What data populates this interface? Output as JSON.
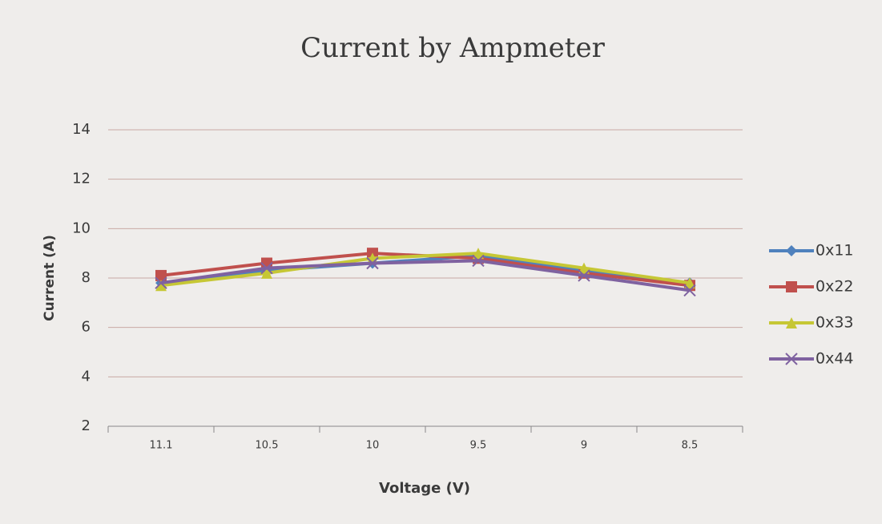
{
  "chart_data": {
    "type": "line",
    "title": "Current  by Ampmeter",
    "x_label": "Voltage (V)",
    "y_label": "Current (A)",
    "categories": [
      "11.1",
      "10.5",
      "10",
      "9.5",
      "9",
      "8.5"
    ],
    "series": [
      {
        "name": "0x11",
        "color": "#4f81bd",
        "marker": "diamond",
        "values": [
          7.8,
          8.3,
          8.6,
          8.9,
          8.3,
          7.8
        ]
      },
      {
        "name": "0x22",
        "color": "#c0504d",
        "marker": "square",
        "values": [
          8.1,
          8.6,
          9.0,
          8.8,
          8.2,
          7.7
        ]
      },
      {
        "name": "0x33",
        "color": "#c6c735",
        "marker": "triangle",
        "values": [
          7.7,
          8.2,
          8.8,
          9.0,
          8.4,
          7.8
        ]
      },
      {
        "name": "0x44",
        "color": "#7f62a0",
        "marker": "x",
        "values": [
          7.8,
          8.4,
          8.6,
          8.7,
          8.1,
          7.5
        ]
      }
    ],
    "ylim": [
      2,
      14
    ],
    "yticks": [
      2,
      4,
      6,
      8,
      10,
      12,
      14
    ],
    "grid": true,
    "legend": "right"
  }
}
